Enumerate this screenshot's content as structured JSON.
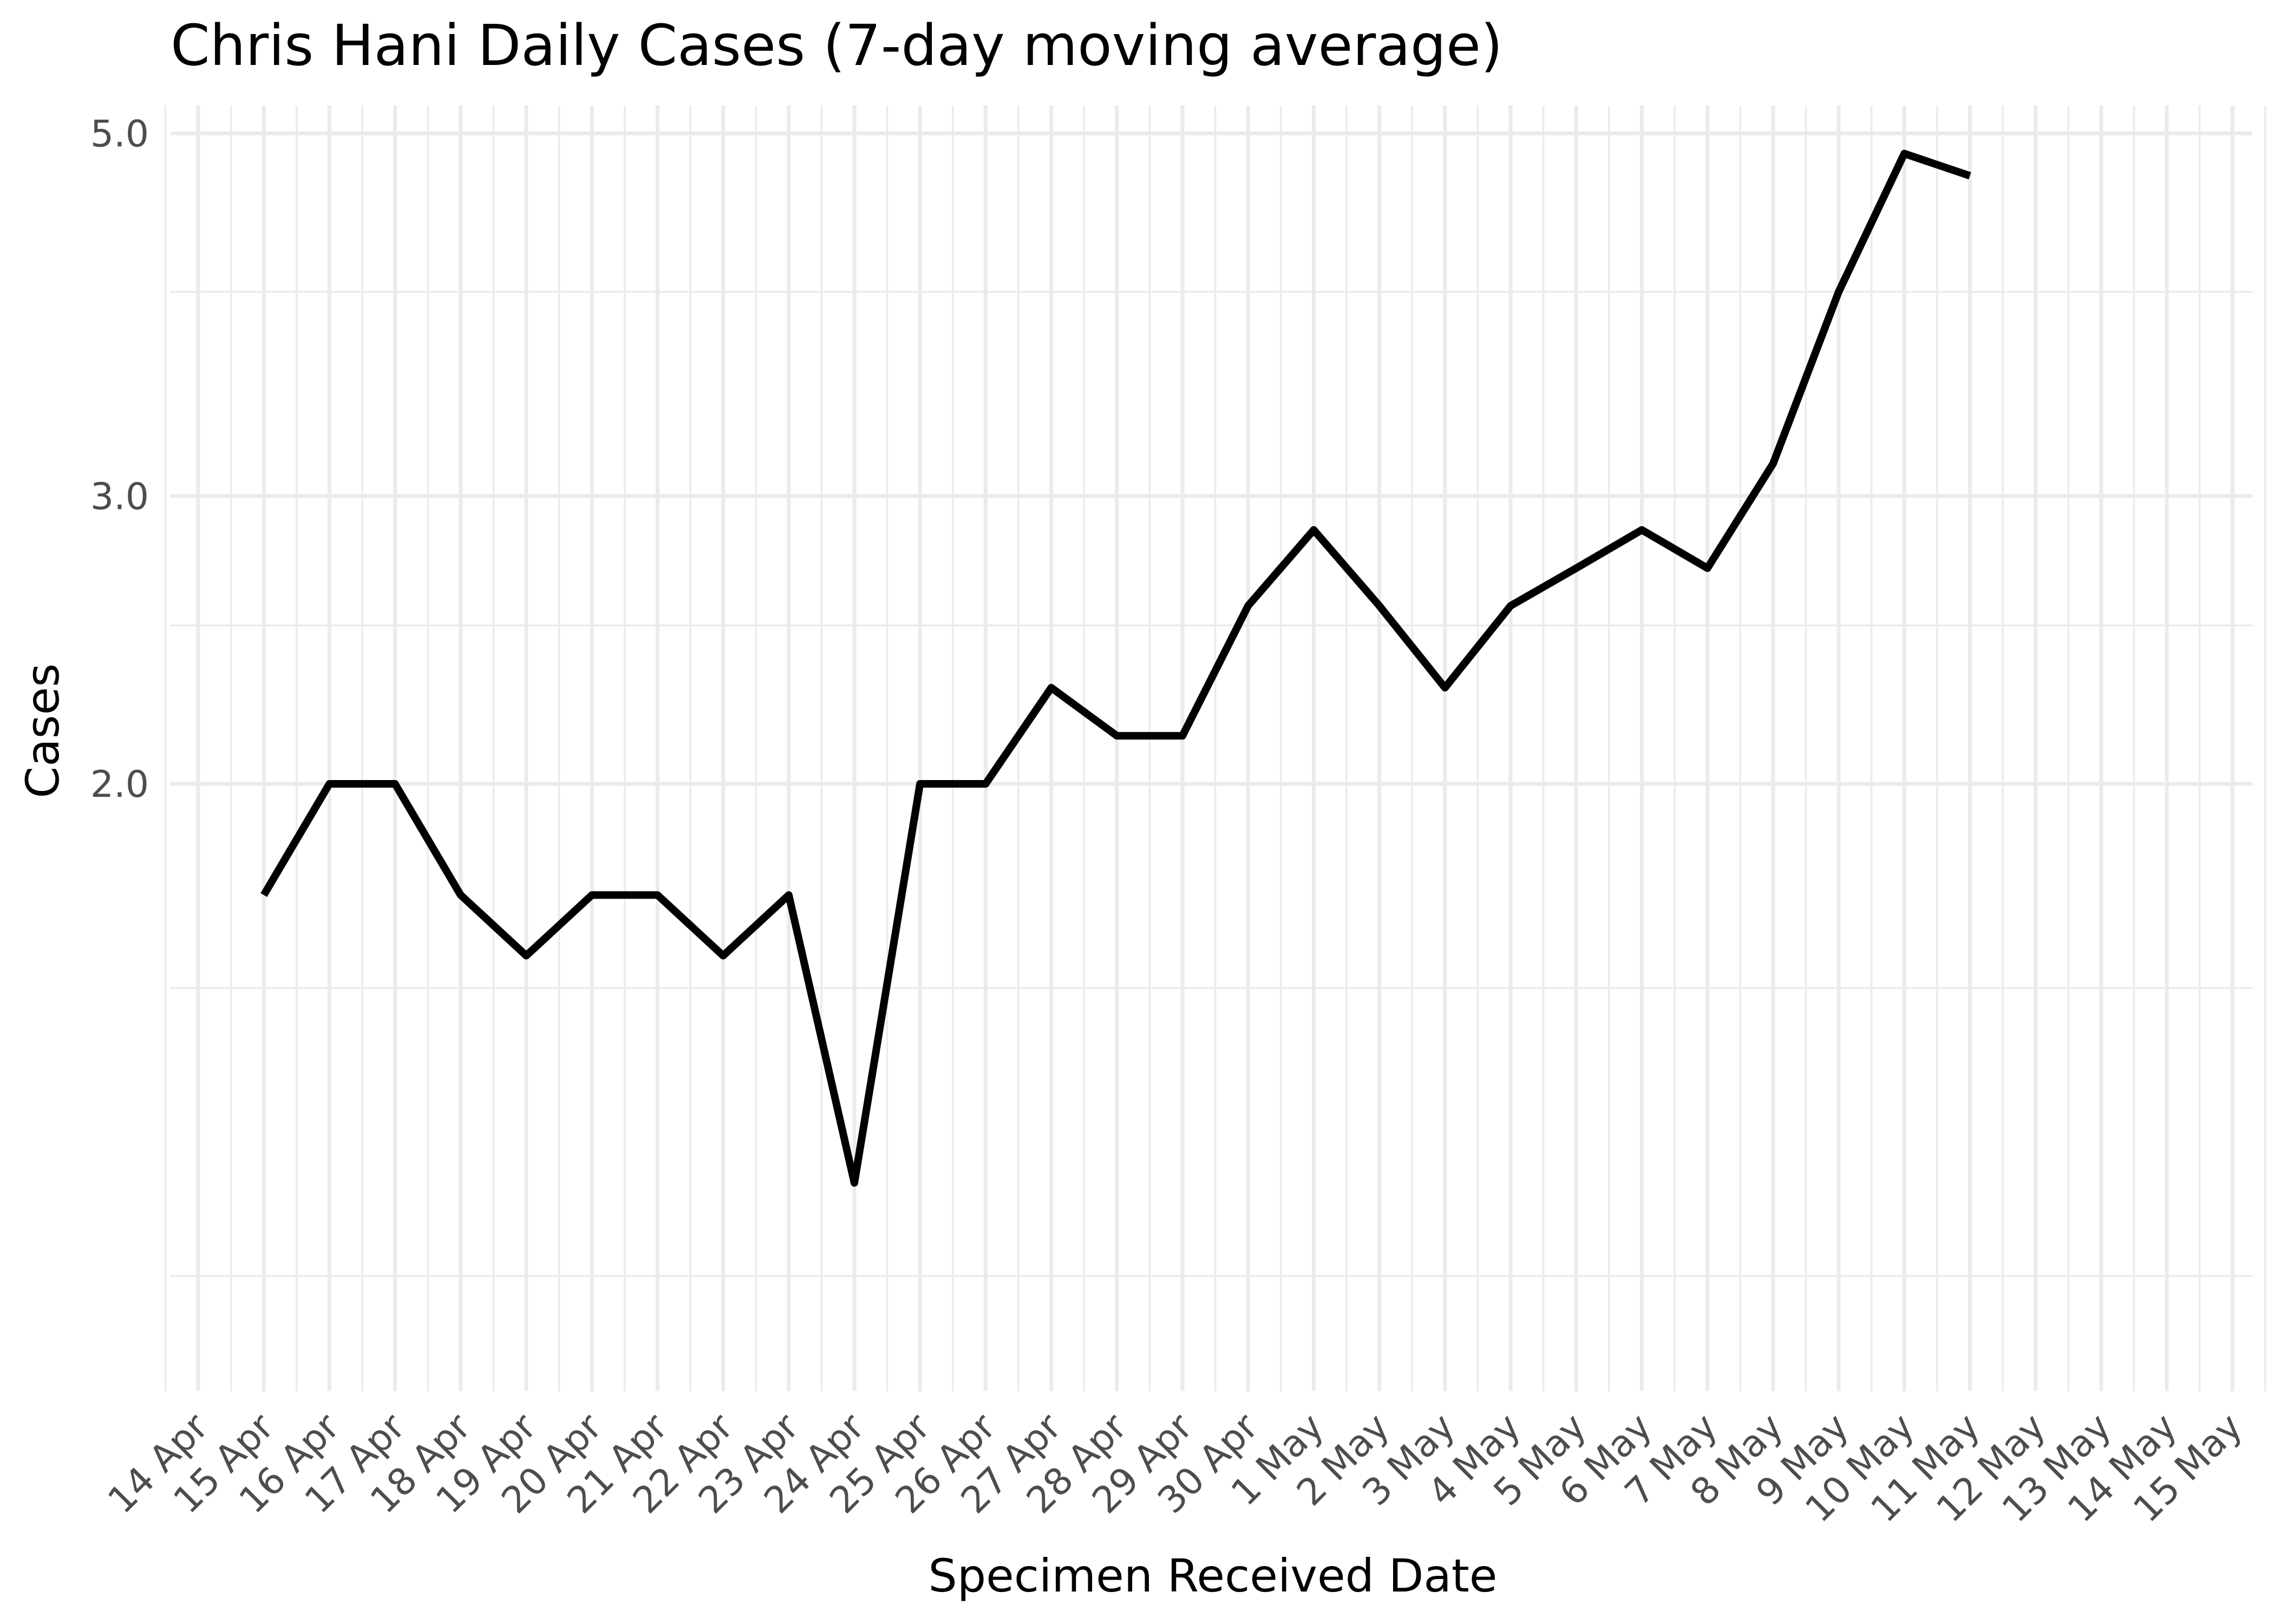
{
  "chart_data": {
    "type": "line",
    "title": "Chris Hani Daily Cases (7-day moving average)",
    "xlabel": "Specimen Received Date",
    "ylabel": "Cases",
    "x_tick_labels": [
      "14 Apr",
      "15 Apr",
      "16 Apr",
      "17 Apr",
      "18 Apr",
      "19 Apr",
      "20 Apr",
      "21 Apr",
      "22 Apr",
      "23 Apr",
      "24 Apr",
      "25 Apr",
      "26 Apr",
      "27 Apr",
      "28 Apr",
      "29 Apr",
      "30 Apr",
      "1 May",
      "2 May",
      "3 May",
      "4 May",
      "5 May",
      "6 May",
      "7 May",
      "8 May",
      "9 May",
      "10 May",
      "11 May",
      "12 May",
      "13 May",
      "14 May",
      "15 May"
    ],
    "y_tick_labels": [
      "2.0",
      "3.0",
      "5.0"
    ],
    "y_major_ticks": [
      2.0,
      3.0,
      5.0
    ],
    "y_minor_ticks": [
      1.0,
      1.5,
      2.5,
      4.0
    ],
    "y_scale": "log",
    "ylim": [
      0.85,
      5.2
    ],
    "grid": true,
    "legend": "none",
    "line_color": "#000000",
    "series": [
      {
        "x": [
          "15 Apr",
          "16 Apr",
          "17 Apr",
          "18 Apr",
          "19 Apr",
          "20 Apr",
          "21 Apr",
          "22 Apr",
          "23 Apr",
          "24 Apr",
          "25 Apr",
          "26 Apr",
          "27 Apr",
          "28 Apr",
          "29 Apr",
          "30 Apr",
          "1 May",
          "2 May",
          "3 May",
          "4 May",
          "5 May",
          "6 May",
          "7 May",
          "8 May",
          "9 May",
          "10 May",
          "11 May"
        ],
        "values": [
          1.71,
          2.0,
          2.0,
          1.71,
          1.57,
          1.71,
          1.71,
          1.57,
          1.71,
          1.14,
          2.0,
          2.0,
          2.29,
          2.14,
          2.14,
          2.57,
          2.86,
          2.57,
          2.29,
          2.57,
          2.71,
          2.86,
          2.71,
          3.14,
          4.0,
          4.86,
          4.71
        ]
      }
    ]
  }
}
